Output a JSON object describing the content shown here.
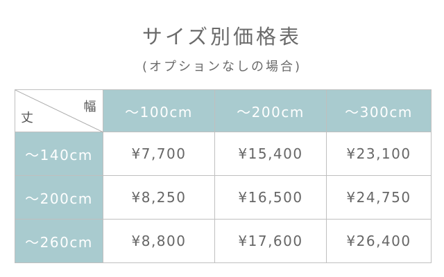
{
  "title": "サイズ別価格表",
  "subtitle": "(オプションなしの場合)",
  "table": {
    "corner": {
      "width_label": "幅",
      "height_label": "丈"
    },
    "columns": [
      "～100cm",
      "～200cm",
      "～300cm"
    ],
    "rows": [
      {
        "label": "～140cm",
        "prices": [
          "¥7,700",
          "¥15,400",
          "¥23,100"
        ]
      },
      {
        "label": "～200cm",
        "prices": [
          "¥8,250",
          "¥16,500",
          "¥24,750"
        ]
      },
      {
        "label": "～260cm",
        "prices": [
          "¥8,800",
          "¥17,600",
          "¥26,400"
        ]
      }
    ],
    "header_color": "#a9cbcf"
  }
}
